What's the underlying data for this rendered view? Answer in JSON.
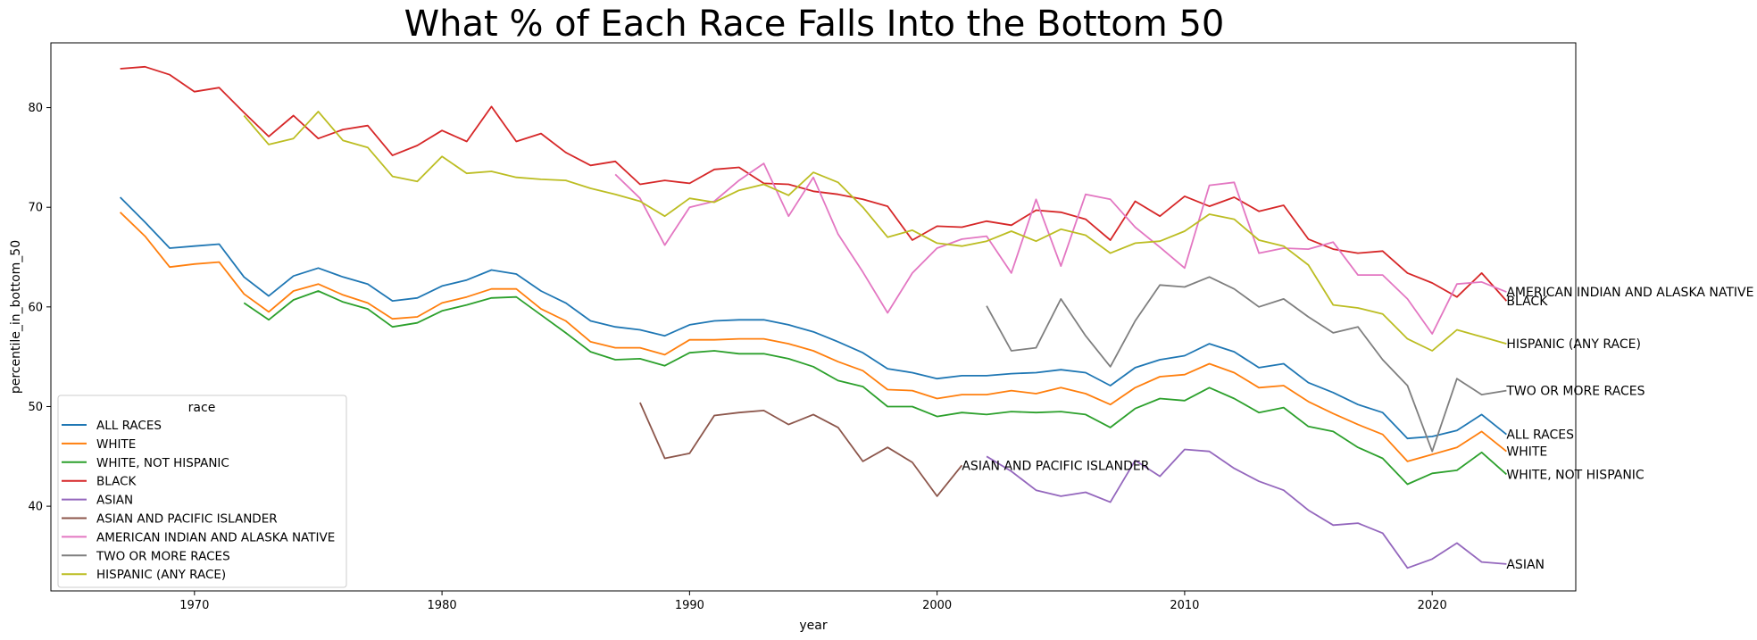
{
  "chart_data": {
    "type": "line",
    "title": "What % of Each Race Falls Into the Bottom 50",
    "xlabel": "year",
    "ylabel": "percentile_in_bottom_50",
    "xlim": [
      1964.2,
      2025.8
    ],
    "ylim": [
      31.5,
      86.5
    ],
    "xticks": [
      1970,
      1980,
      1990,
      2000,
      2010,
      2020
    ],
    "yticks": [
      40,
      50,
      60,
      70,
      80
    ],
    "grid": false,
    "legend": {
      "title": "race",
      "placement": "lower-left"
    },
    "series": [
      {
        "name": "ALL RACES",
        "color": "#1f77b4",
        "x": [
          1967,
          1968,
          1969,
          1970,
          1971,
          1972,
          1973,
          1974,
          1975,
          1976,
          1977,
          1978,
          1979,
          1980,
          1981,
          1982,
          1983,
          1984,
          1985,
          1986,
          1987,
          1988,
          1989,
          1990,
          1991,
          1992,
          1993,
          1994,
          1995,
          1996,
          1997,
          1998,
          1999,
          2000,
          2001,
          2002,
          2003,
          2004,
          2005,
          2006,
          2007,
          2008,
          2009,
          2010,
          2011,
          2012,
          2013,
          2014,
          2015,
          2016,
          2017,
          2018,
          2019,
          2020,
          2021,
          2022,
          2023
        ],
        "y": [
          71.0,
          68.5,
          65.9,
          66.1,
          66.3,
          63.0,
          61.1,
          63.1,
          63.9,
          63.0,
          62.3,
          60.6,
          60.9,
          62.1,
          62.7,
          63.7,
          63.3,
          61.6,
          60.4,
          58.6,
          58.0,
          57.7,
          57.1,
          58.2,
          58.6,
          58.7,
          58.7,
          58.2,
          57.5,
          56.5,
          55.4,
          53.8,
          53.4,
          52.8,
          53.1,
          53.1,
          53.3,
          53.4,
          53.7,
          53.4,
          52.1,
          53.9,
          54.7,
          55.1,
          56.3,
          55.5,
          53.9,
          54.3,
          52.4,
          51.4,
          50.2,
          49.4,
          46.8,
          47.0,
          47.6,
          49.2,
          47.2
        ]
      },
      {
        "name": "WHITE",
        "color": "#ff7f0e",
        "x": [
          1967,
          1968,
          1969,
          1970,
          1971,
          1972,
          1973,
          1974,
          1975,
          1976,
          1977,
          1978,
          1979,
          1980,
          1981,
          1982,
          1983,
          1984,
          1985,
          1986,
          1987,
          1988,
          1989,
          1990,
          1991,
          1992,
          1993,
          1994,
          1995,
          1996,
          1997,
          1998,
          1999,
          2000,
          2001,
          2002,
          2003,
          2004,
          2005,
          2006,
          2007,
          2008,
          2009,
          2010,
          2011,
          2012,
          2013,
          2014,
          2015,
          2016,
          2017,
          2018,
          2019,
          2020,
          2021,
          2022,
          2023
        ],
        "y": [
          69.5,
          67.1,
          64.0,
          64.3,
          64.5,
          61.3,
          59.5,
          61.6,
          62.3,
          61.2,
          60.4,
          58.8,
          59.0,
          60.4,
          61.0,
          61.8,
          61.8,
          59.8,
          58.6,
          56.5,
          55.9,
          55.9,
          55.2,
          56.7,
          56.7,
          56.8,
          56.8,
          56.3,
          55.6,
          54.5,
          53.6,
          51.7,
          51.6,
          50.8,
          51.2,
          51.2,
          51.6,
          51.3,
          51.9,
          51.3,
          50.2,
          51.9,
          53.0,
          53.2,
          54.3,
          53.4,
          51.9,
          52.1,
          50.5,
          49.3,
          48.2,
          47.2,
          44.5,
          45.2,
          45.9,
          47.5,
          45.5
        ]
      },
      {
        "name": "WHITE, NOT HISPANIC",
        "color": "#2ca02c",
        "x": [
          1972,
          1973,
          1974,
          1975,
          1976,
          1977,
          1978,
          1979,
          1980,
          1981,
          1982,
          1983,
          1984,
          1985,
          1986,
          1987,
          1988,
          1989,
          1990,
          1991,
          1992,
          1993,
          1994,
          1995,
          1996,
          1997,
          1998,
          1999,
          2000,
          2001,
          2002,
          2003,
          2004,
          2005,
          2006,
          2007,
          2008,
          2009,
          2010,
          2011,
          2012,
          2013,
          2014,
          2015,
          2016,
          2017,
          2018,
          2019,
          2020,
          2021,
          2022,
          2023
        ],
        "y": [
          60.4,
          58.7,
          60.7,
          61.6,
          60.5,
          59.8,
          58.0,
          58.4,
          59.6,
          60.2,
          60.9,
          61.0,
          59.2,
          57.4,
          55.5,
          54.7,
          54.8,
          54.1,
          55.4,
          55.6,
          55.3,
          55.3,
          54.8,
          54.0,
          52.6,
          52.0,
          50.0,
          50.0,
          49.0,
          49.4,
          49.2,
          49.5,
          49.4,
          49.5,
          49.2,
          47.9,
          49.8,
          50.8,
          50.6,
          51.9,
          50.8,
          49.4,
          49.9,
          48.0,
          47.5,
          45.9,
          44.8,
          42.2,
          43.3,
          43.6,
          45.4,
          43.2
        ]
      },
      {
        "name": "BLACK",
        "color": "#d62728",
        "x": [
          1967,
          1968,
          1969,
          1970,
          1971,
          1972,
          1973,
          1974,
          1975,
          1976,
          1977,
          1978,
          1979,
          1980,
          1981,
          1982,
          1983,
          1984,
          1985,
          1986,
          1987,
          1988,
          1989,
          1990,
          1991,
          1992,
          1993,
          1994,
          1995,
          1996,
          1997,
          1998,
          1999,
          2000,
          2001,
          2002,
          2003,
          2004,
          2005,
          2006,
          2007,
          2008,
          2009,
          2010,
          2011,
          2012,
          2013,
          2014,
          2015,
          2016,
          2017,
          2018,
          2019,
          2020,
          2021,
          2022,
          2023
        ],
        "y": [
          83.9,
          84.1,
          83.3,
          81.6,
          82.0,
          79.5,
          77.1,
          79.2,
          76.9,
          77.8,
          78.2,
          75.2,
          76.2,
          77.7,
          76.6,
          80.1,
          76.6,
          77.4,
          75.5,
          74.2,
          74.6,
          72.3,
          72.7,
          72.4,
          73.8,
          74.0,
          72.4,
          72.3,
          71.6,
          71.3,
          70.8,
          70.1,
          66.7,
          68.1,
          68.0,
          68.6,
          68.2,
          69.7,
          69.5,
          68.8,
          66.7,
          70.6,
          69.1,
          71.1,
          70.1,
          71.0,
          69.6,
          70.2,
          66.8,
          65.8,
          65.4,
          65.6,
          63.4,
          62.4,
          61.0,
          63.4,
          60.6
        ]
      },
      {
        "name": "ASIAN",
        "color": "#9467bd",
        "x": [
          2002,
          2003,
          2004,
          2005,
          2006,
          2007,
          2008,
          2009,
          2010,
          2011,
          2012,
          2013,
          2014,
          2015,
          2016,
          2017,
          2018,
          2019,
          2020,
          2021,
          2022,
          2023
        ],
        "y": [
          45.0,
          43.5,
          41.6,
          41.0,
          41.4,
          40.4,
          44.6,
          43.0,
          45.7,
          45.5,
          43.8,
          42.5,
          41.6,
          39.6,
          38.1,
          38.3,
          37.3,
          33.8,
          34.7,
          36.3,
          34.4,
          34.2
        ]
      },
      {
        "name": "ASIAN AND PACIFIC ISLANDER",
        "color": "#8c564b",
        "x": [
          1988,
          1989,
          1990,
          1991,
          1992,
          1993,
          1994,
          1995,
          1996,
          1997,
          1998,
          1999,
          2000,
          2001
        ],
        "y": [
          50.4,
          44.8,
          45.3,
          49.1,
          49.4,
          49.6,
          48.2,
          49.2,
          47.9,
          44.5,
          45.9,
          44.4,
          41.0,
          44.1
        ]
      },
      {
        "name": "AMERICAN INDIAN AND ALASKA NATIVE",
        "color": "#e377c2",
        "x": [
          1987,
          1988,
          1989,
          1990,
          1991,
          1992,
          1993,
          1994,
          1995,
          1996,
          1997,
          1998,
          1999,
          2000,
          2001,
          2002,
          2003,
          2004,
          2005,
          2006,
          2007,
          2008,
          2009,
          2010,
          2011,
          2012,
          2013,
          2014,
          2015,
          2016,
          2017,
          2018,
          2019,
          2020,
          2021,
          2022,
          2023
        ],
        "y": [
          73.3,
          70.9,
          66.2,
          70.0,
          70.6,
          72.7,
          74.4,
          69.1,
          73.0,
          67.3,
          63.5,
          59.4,
          63.4,
          65.9,
          66.8,
          67.1,
          63.4,
          70.8,
          64.1,
          71.3,
          70.8,
          68.0,
          66.0,
          63.9,
          72.2,
          72.5,
          65.4,
          65.9,
          65.8,
          66.5,
          63.2,
          63.2,
          60.8,
          57.3,
          62.3,
          62.5,
          61.5
        ]
      },
      {
        "name": "TWO OR MORE RACES",
        "color": "#7f7f7f",
        "x": [
          2002,
          2003,
          2004,
          2005,
          2006,
          2007,
          2008,
          2009,
          2010,
          2011,
          2012,
          2013,
          2014,
          2015,
          2016,
          2017,
          2018,
          2019,
          2020,
          2021,
          2022,
          2023
        ],
        "y": [
          60.1,
          55.6,
          55.9,
          60.8,
          57.1,
          54.0,
          58.6,
          62.2,
          62.0,
          63.0,
          61.8,
          60.0,
          60.8,
          59.0,
          57.4,
          58.0,
          54.7,
          52.1,
          45.5,
          52.8,
          51.2,
          51.6
        ]
      },
      {
        "name": "HISPANIC (ANY RACE)",
        "color": "#bcbd22",
        "x": [
          1972,
          1973,
          1974,
          1975,
          1976,
          1977,
          1978,
          1979,
          1980,
          1981,
          1982,
          1983,
          1984,
          1985,
          1986,
          1987,
          1988,
          1989,
          1990,
          1991,
          1992,
          1993,
          1994,
          1995,
          1996,
          1997,
          1998,
          1999,
          2000,
          2001,
          2002,
          2003,
          2004,
          2005,
          2006,
          2007,
          2008,
          2009,
          2010,
          2011,
          2012,
          2013,
          2014,
          2015,
          2016,
          2017,
          2018,
          2019,
          2020,
          2021,
          2022,
          2023
        ],
        "y": [
          79.2,
          76.3,
          76.9,
          79.6,
          76.7,
          76.0,
          73.1,
          72.6,
          75.1,
          73.4,
          73.6,
          73.0,
          72.8,
          72.7,
          71.9,
          71.3,
          70.6,
          69.1,
          70.9,
          70.5,
          71.7,
          72.3,
          71.2,
          73.5,
          72.5,
          70.0,
          67.0,
          67.7,
          66.4,
          66.1,
          66.6,
          67.6,
          66.6,
          67.8,
          67.2,
          65.4,
          66.4,
          66.6,
          67.6,
          69.3,
          68.8,
          66.7,
          66.1,
          64.2,
          60.2,
          59.9,
          59.3,
          56.8,
          55.6,
          57.7,
          57.0,
          56.3
        ]
      }
    ]
  }
}
